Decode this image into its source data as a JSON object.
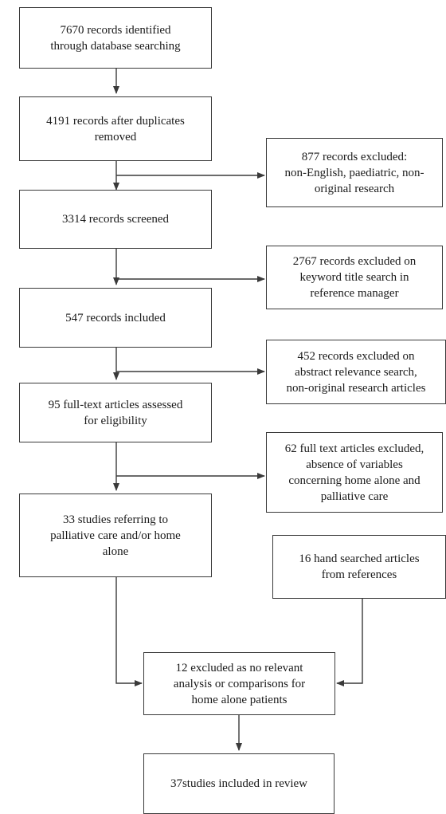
{
  "flowchart": {
    "identified": "7670  records identified\nthrough database searching",
    "after_duplicates": "4191 records after duplicates\nremoved",
    "excluded_language": "877  records excluded:\nnon-English, paediatric, non-\noriginal research",
    "screened": "3314 records screened",
    "excluded_keyword": "2767 records excluded on\nkeyword title search in\nreference manager",
    "records_included": "547 records included",
    "excluded_abstract": "452 records excluded on\nabstract relevance search,\nnon-original research articles",
    "full_text_assessed": "95 full-text articles assessed\nfor eligibility",
    "excluded_full_text": "62 full text articles excluded,\nabsence of variables\nconcerning home alone and\npalliative care",
    "studies_referring": "33 studies referring to\npalliative care and/or home\nalone",
    "hand_searched": "16 hand searched articles\nfrom references",
    "excluded_no_analysis": "12 excluded as no relevant\nanalysis or comparisons for\nhome alone patients",
    "included_review": "37studies included in review"
  }
}
